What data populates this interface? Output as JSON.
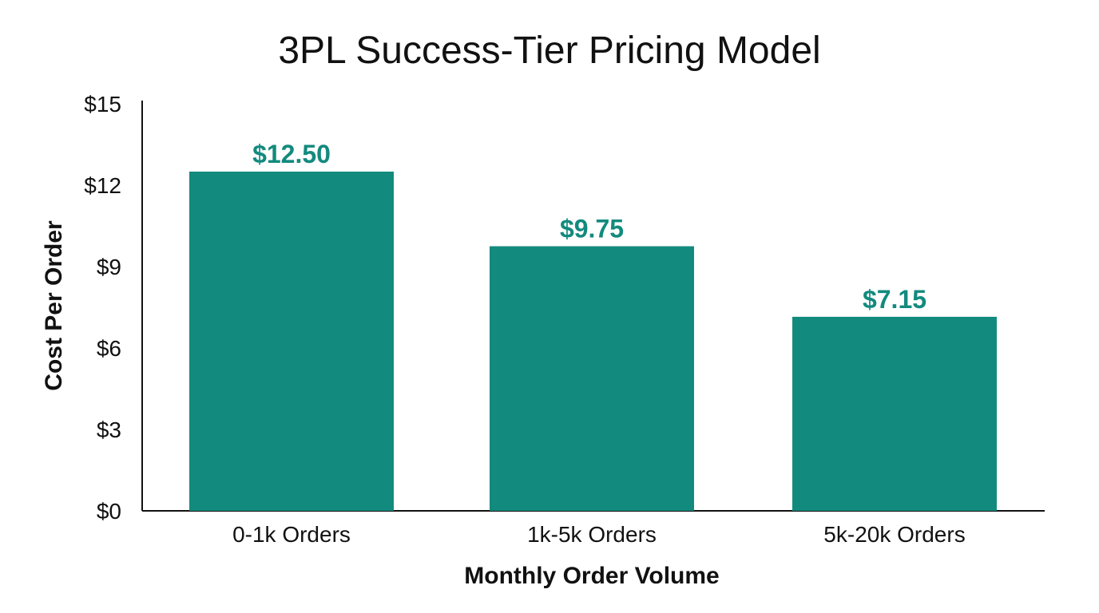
{
  "chart_data": {
    "type": "bar",
    "title": "3PL Success-Tier Pricing Model",
    "xlabel": "Monthly Order Volume",
    "ylabel": "Cost Per Order",
    "categories": [
      "0-1k Orders",
      "1k-5k Orders",
      "5k-20k Orders"
    ],
    "values": [
      12.5,
      9.75,
      7.15
    ],
    "data_labels": [
      "$12.50",
      "$9.75",
      "$7.15"
    ],
    "ylim": [
      0,
      15
    ],
    "yticks": [
      0,
      3,
      6,
      9,
      12,
      15
    ],
    "ytick_labels": [
      "$0",
      "$3",
      "$6",
      "$9",
      "$12",
      "$15"
    ],
    "grid": false,
    "bar_color": "#138a7e",
    "label_color": "#138a7e"
  }
}
